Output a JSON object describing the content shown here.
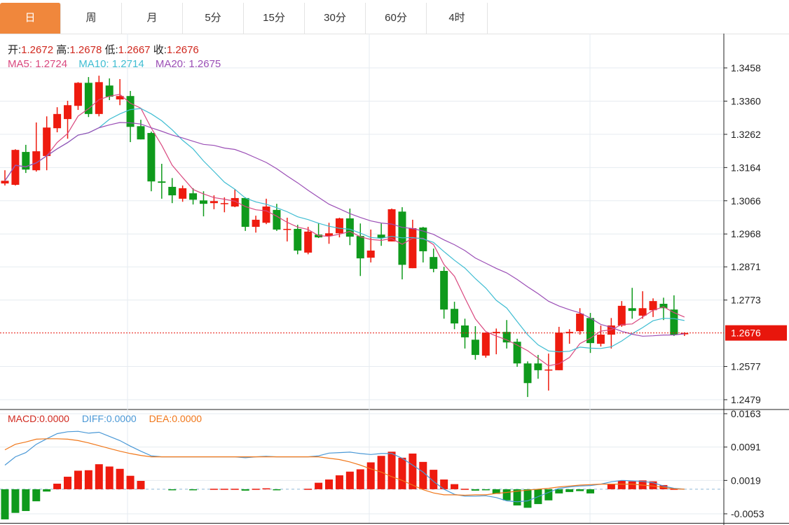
{
  "tabs": [
    {
      "label": "日",
      "active": true
    },
    {
      "label": "周"
    },
    {
      "label": "月"
    },
    {
      "label": "5分"
    },
    {
      "label": "15分"
    },
    {
      "label": "30分"
    },
    {
      "label": "60分"
    },
    {
      "label": "4时"
    }
  ],
  "ohlc_legend": {
    "open_label": "开:",
    "open": "1.2672",
    "high_label": "高:",
    "high": "1.2678",
    "low_label": "低:",
    "low": "1.2667",
    "close_label": "收:",
    "close": "1.2676"
  },
  "ma_legend": {
    "ma5_label": "MA5:",
    "ma5": "1.2724",
    "ma10_label": "MA10:",
    "ma10": "1.2714",
    "ma20_label": "MA20:",
    "ma20": "1.2675"
  },
  "macd_legend": {
    "macd_label": "MACD:",
    "macd": "0.0000",
    "diff_label": "DIFF:",
    "diff": "0.0000",
    "dea_label": "DEA:",
    "dea": "0.0000"
  },
  "colors": {
    "up": "#ee1b0f",
    "down": "#0f9a1c",
    "ma5": "#d9487f",
    "ma10": "#3fbdd2",
    "ma20": "#9b4fb6",
    "diff": "#4a98d6",
    "dea": "#f0771a",
    "tab_active": "#f0873c",
    "last_price": "#e8160c"
  },
  "chart_data": {
    "type": "candlestick",
    "price_axis_ticks": [
      "1.3458",
      "1.3360",
      "1.3262",
      "1.3164",
      "1.3066",
      "1.2968",
      "1.2871",
      "1.2773",
      "1.2577",
      "1.2479"
    ],
    "price_range": [
      1.2479,
      1.3458
    ],
    "last_price": "1.2676",
    "candles_ohlc": [
      [
        1.3117,
        1.3156,
        1.3111,
        1.3125
      ],
      [
        1.3113,
        1.3218,
        1.3111,
        1.3216
      ],
      [
        1.321,
        1.3231,
        1.3148,
        1.3158
      ],
      [
        1.3156,
        1.3297,
        1.3152,
        1.3212
      ],
      [
        1.3198,
        1.3315,
        1.3156,
        1.3282
      ],
      [
        1.328,
        1.3342,
        1.3268,
        1.3322
      ],
      [
        1.3307,
        1.3361,
        1.3249,
        1.3348
      ],
      [
        1.3346,
        1.3416,
        1.3334,
        1.3414
      ],
      [
        1.3414,
        1.3431,
        1.3313,
        1.3322
      ],
      [
        1.3322,
        1.3435,
        1.3315,
        1.3416
      ],
      [
        1.3406,
        1.3427,
        1.3363,
        1.3373
      ],
      [
        1.3365,
        1.3425,
        1.3348,
        1.3375
      ],
      [
        1.3375,
        1.339,
        1.3239,
        1.3284
      ],
      [
        1.3286,
        1.3305,
        1.3247,
        1.3247
      ],
      [
        1.3266,
        1.327,
        1.3094,
        1.3123
      ],
      [
        1.3123,
        1.3175,
        1.3072,
        1.3119
      ],
      [
        1.3107,
        1.3133,
        1.3059,
        1.3082
      ],
      [
        1.3072,
        1.3111,
        1.3063,
        1.3103
      ],
      [
        1.3088,
        1.3103,
        1.3055,
        1.3069
      ],
      [
        1.3067,
        1.3094,
        1.302,
        1.3057
      ],
      [
        1.3059,
        1.3082,
        1.3041,
        1.3065
      ],
      [
        1.3057,
        1.3076,
        1.3032,
        1.3059
      ],
      [
        1.3049,
        1.31,
        1.3047,
        1.3074
      ],
      [
        1.3074,
        1.3076,
        1.2977,
        1.2989
      ],
      [
        1.2989,
        1.3022,
        1.2972,
        1.301
      ],
      [
        1.3001,
        1.3072,
        1.2997,
        1.3049
      ],
      [
        1.3039,
        1.3057,
        1.2977,
        1.2981
      ],
      [
        1.2981,
        1.3016,
        1.2946,
        1.2983
      ],
      [
        1.2983,
        1.2995,
        1.2908,
        1.2919
      ],
      [
        1.2913,
        1.2989,
        1.2908,
        1.2975
      ],
      [
        1.2966,
        1.2999,
        1.2956,
        1.2958
      ],
      [
        1.2962,
        1.3001,
        1.2939,
        1.297
      ],
      [
        1.297,
        1.3016,
        1.2958,
        1.3014
      ],
      [
        1.3014,
        1.3043,
        1.2935,
        1.296
      ],
      [
        1.2962,
        1.2999,
        1.2844,
        1.2896
      ],
      [
        1.2898,
        1.2981,
        1.2884,
        1.2919
      ],
      [
        1.2966,
        1.2999,
        1.2933,
        1.2956
      ],
      [
        1.2946,
        1.3043,
        1.2946,
        1.3041
      ],
      [
        1.3034,
        1.3047,
        1.2834,
        1.2877
      ],
      [
        1.2867,
        1.301,
        1.2867,
        1.2985
      ],
      [
        1.2987,
        1.2989,
        1.2884,
        1.2917
      ],
      [
        1.29,
        1.2925,
        1.2855,
        1.2865
      ],
      [
        1.2859,
        1.2871,
        1.2718,
        1.2745
      ],
      [
        1.2747,
        1.2768,
        1.2687,
        1.2704
      ],
      [
        1.2698,
        1.2718,
        1.263,
        1.2663
      ],
      [
        1.2656,
        1.2696,
        1.2597,
        1.2611
      ],
      [
        1.2609,
        1.2677,
        1.2603,
        1.2677
      ],
      [
        1.2675,
        1.2689,
        1.2613,
        1.2679
      ],
      [
        1.2679,
        1.2714,
        1.263,
        1.2648
      ],
      [
        1.265,
        1.2659,
        1.2576,
        1.2586
      ],
      [
        1.2586,
        1.2592,
        1.2487,
        1.2528
      ],
      [
        1.2586,
        1.2611,
        1.2541,
        1.2566
      ],
      [
        1.2566,
        1.2615,
        1.2506,
        1.2568
      ],
      [
        1.2566,
        1.2694,
        1.2566,
        1.2677
      ],
      [
        1.2675,
        1.2687,
        1.2644,
        1.2679
      ],
      [
        1.2681,
        1.2749,
        1.2671,
        1.2733
      ],
      [
        1.272,
        1.2735,
        1.2617,
        1.2646
      ],
      [
        1.2644,
        1.2698,
        1.2636,
        1.2671
      ],
      [
        1.2671,
        1.272,
        1.263,
        1.2698
      ],
      [
        1.2698,
        1.277,
        1.2694,
        1.2756
      ],
      [
        1.2749,
        1.2809,
        1.2718,
        1.2741
      ],
      [
        1.2727,
        1.2799,
        1.2718,
        1.2749
      ],
      [
        1.2743,
        1.2778,
        1.2723,
        1.277
      ],
      [
        1.2762,
        1.278,
        1.2714,
        1.2749
      ],
      [
        1.2745,
        1.2787,
        1.2667,
        1.2671
      ],
      [
        1.2672,
        1.2678,
        1.2667,
        1.2676
      ]
    ],
    "macd_axis_ticks": [
      "0.0163",
      "0.0091",
      "0.0019",
      "-0.0053"
    ],
    "macd_range": [
      -0.0053,
      0.0163
    ],
    "macd": [
      -0.0065,
      -0.0051,
      -0.0047,
      -0.0026,
      -0.0005,
      0.0012,
      0.0027,
      0.004,
      0.0041,
      0.0054,
      0.0049,
      0.0044,
      0.0029,
      0.0018,
      0,
      0,
      -0.0001,
      0,
      -0.0001,
      0,
      0.0001,
      0.0001,
      0.0001,
      -0.0003,
      0.0001,
      0.0002,
      -0.0001,
      0,
      0,
      0.0001,
      0.0014,
      0.0021,
      0.003,
      0.0038,
      0.0043,
      0.0058,
      0.0072,
      0.0081,
      0.0068,
      0.0077,
      0.0059,
      0.0042,
      0.0021,
      0.0011,
      0.0001,
      -0.0003,
      -0.0002,
      -0.001,
      -0.0024,
      -0.0035,
      -0.004,
      -0.0032,
      -0.0024,
      -0.0009,
      -0.0006,
      -0.0004,
      -0.0009,
      0,
      0.0011,
      0.0018,
      0.0017,
      0.0019,
      0.0017,
      0.0009,
      0.0001,
      0
    ],
    "diff": [
      0.0052,
      0.007,
      0.0079,
      0.0097,
      0.0109,
      0.012,
      0.0124,
      0.0125,
      0.0121,
      0.0123,
      0.0114,
      0.0105,
      0.0093,
      0.0082,
      0.0072,
      0.007,
      0.007,
      0.007,
      0.007,
      0.007,
      0.007,
      0.007,
      0.007,
      0.0068,
      0.007,
      0.0071,
      0.007,
      0.007,
      0.007,
      0.007,
      0.0072,
      0.0078,
      0.0079,
      0.008,
      0.0077,
      0.0075,
      0.0077,
      0.0077,
      0.0067,
      0.0052,
      0.0037,
      0.0017,
      0,
      -0.0011,
      -0.0015,
      -0.0015,
      -0.0014,
      -0.0018,
      -0.0025,
      -0.0027,
      -0.0025,
      -0.0016,
      -0.0007,
      0.0002,
      0.0005,
      0.0007,
      0.0008,
      0.0011,
      0.0016,
      0.0019,
      0.0018,
      0.0017,
      0.0014,
      0.0007,
      0.0002,
      0
    ],
    "dea": [
      0.0085,
      0.0097,
      0.0102,
      0.0108,
      0.0109,
      0.0109,
      0.0108,
      0.0105,
      0.01,
      0.0094,
      0.0088,
      0.0082,
      0.0077,
      0.0073,
      0.007,
      0.007,
      0.007,
      0.007,
      0.007,
      0.007,
      0.007,
      0.007,
      0.007,
      0.007,
      0.007,
      0.007,
      0.007,
      0.007,
      0.007,
      0.007,
      0.007,
      0.0067,
      0.0064,
      0.0059,
      0.0052,
      0.0044,
      0.0037,
      0.0027,
      0.0019,
      0.0009,
      -0.0001,
      -0.0008,
      -0.0012,
      -0.0012,
      -0.0013,
      -0.0012,
      -0.0012,
      -0.0009,
      -0.0007,
      -0.0004,
      -0.0002,
      0,
      0.0002,
      0.0005,
      0.0007,
      0.0009,
      0.001,
      0.0011,
      0.0011,
      0.0011,
      0.0011,
      0.0009,
      0.0007,
      0.0004,
      0.0001,
      0
    ]
  }
}
